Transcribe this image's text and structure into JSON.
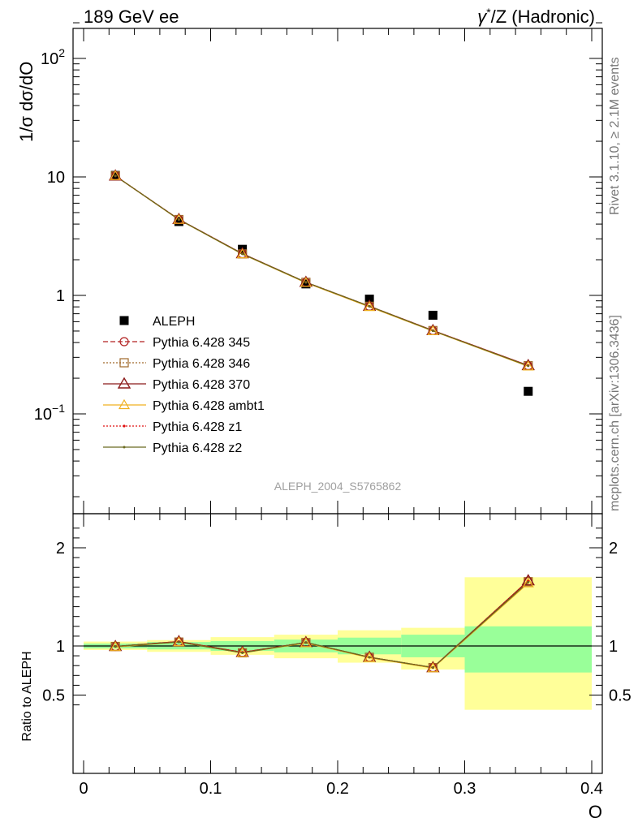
{
  "header": {
    "left": "189 GeV ee",
    "right_sym": "γ",
    "right_sup": "*",
    "right_rest": "/Z (Hadronic)"
  },
  "side_text": {
    "rivet": "Rivet 3.1.10, ≥ 2.1M events",
    "mcplots": "mcplots.cern.ch [arXiv:1306.3436]"
  },
  "analysis_label": "ALEPH_2004_S5765862",
  "colors": {
    "data": "#000000",
    "p345": "#b22222",
    "p346": "#a0692a",
    "p370": "#8b1a1a",
    "ambt1": "#f0b020",
    "z1": "#e01010",
    "z2": "#6b6b20",
    "band_inner": "#99ff99",
    "band_outer": "#ffff99"
  },
  "chart_data": [
    {
      "type": "scatter",
      "panel": "main",
      "ylabel": "1/σ  dσ/dO",
      "yscale": "log",
      "xlim": [
        0,
        0.4
      ],
      "ylim": [
        0.015,
        200
      ],
      "yticks": [
        {
          "value": 0.1,
          "base": "10",
          "exp": "−1"
        },
        {
          "value": 1,
          "base": "1",
          "exp": ""
        },
        {
          "value": 10,
          "base": "10",
          "exp": ""
        },
        {
          "value": 100,
          "base": "10",
          "exp": "2"
        }
      ],
      "x": [
        0.025,
        0.075,
        0.125,
        0.175,
        0.225,
        0.275,
        0.35
      ],
      "x_bins": [
        [
          0,
          0.05
        ],
        [
          0.05,
          0.1
        ],
        [
          0.1,
          0.15
        ],
        [
          0.15,
          0.2
        ],
        [
          0.2,
          0.25
        ],
        [
          0.25,
          0.3
        ],
        [
          0.3,
          0.4
        ]
      ],
      "series": [
        {
          "name": "ALEPH",
          "key": "data",
          "values": [
            10.3,
            4.2,
            2.45,
            1.25,
            0.93,
            0.68,
            0.155
          ]
        },
        {
          "name": "Pythia 6.428 345",
          "key": "p345",
          "values": [
            10.2,
            4.38,
            2.25,
            1.29,
            0.81,
            0.505,
            0.255
          ]
        },
        {
          "name": "Pythia 6.428 346",
          "key": "p346",
          "values": [
            10.2,
            4.37,
            2.24,
            1.29,
            0.81,
            0.505,
            0.255
          ]
        },
        {
          "name": "Pythia 6.428 370",
          "key": "p370",
          "values": [
            10.2,
            4.38,
            2.25,
            1.29,
            0.81,
            0.505,
            0.256
          ]
        },
        {
          "name": "Pythia 6.428 ambt1",
          "key": "ambt1",
          "values": [
            10.2,
            4.36,
            2.23,
            1.28,
            0.8,
            0.5,
            0.252
          ]
        },
        {
          "name": "Pythia 6.428 z1",
          "key": "z1",
          "values": [
            10.2,
            4.38,
            2.25,
            1.29,
            0.81,
            0.505,
            0.256
          ]
        },
        {
          "name": "Pythia 6.428 z2",
          "key": "z2",
          "values": [
            10.2,
            4.37,
            2.24,
            1.29,
            0.81,
            0.503,
            0.254
          ]
        }
      ]
    },
    {
      "type": "line",
      "panel": "ratio",
      "ylabel": "Ratio to ALEPH",
      "xlabel": "O",
      "xlim": [
        0,
        0.4
      ],
      "ylim": [
        0.35,
        2.3
      ],
      "xticks": [
        {
          "value": 0,
          "label": "0"
        },
        {
          "value": 0.1,
          "label": "0.1"
        },
        {
          "value": 0.2,
          "label": "0.2"
        },
        {
          "value": 0.3,
          "label": "0.3"
        },
        {
          "value": 0.4,
          "label": "0.4"
        }
      ],
      "yticks": [
        {
          "value": 0.5,
          "label": "0.5"
        },
        {
          "value": 1,
          "label": "1"
        },
        {
          "value": 2,
          "label": "2"
        }
      ],
      "x": [
        0.025,
        0.075,
        0.125,
        0.175,
        0.225,
        0.275,
        0.35
      ],
      "bands": {
        "x_bins": [
          [
            0,
            0.05
          ],
          [
            0.05,
            0.1
          ],
          [
            0.1,
            0.15
          ],
          [
            0.15,
            0.2
          ],
          [
            0.2,
            0.25
          ],
          [
            0.25,
            0.3
          ],
          [
            0.3,
            0.4
          ]
        ],
        "inner": [
          [
            0.975,
            1.025
          ],
          [
            0.965,
            1.04
          ],
          [
            0.95,
            1.05
          ],
          [
            0.935,
            1.065
          ],
          [
            0.915,
            1.085
          ],
          [
            0.885,
            1.115
          ],
          [
            0.73,
            1.2
          ]
        ],
        "outer": [
          [
            0.96,
            1.045
          ],
          [
            0.94,
            1.06
          ],
          [
            0.91,
            1.09
          ],
          [
            0.875,
            1.115
          ],
          [
            0.83,
            1.16
          ],
          [
            0.76,
            1.185
          ],
          [
            0.35,
            1.7
          ]
        ]
      },
      "series": [
        {
          "name": "Pythia 6.428 345",
          "key": "p345",
          "values": [
            0.995,
            1.045,
            0.935,
            1.035,
            0.885,
            0.78,
            1.66
          ]
        },
        {
          "name": "Pythia 6.428 346",
          "key": "p346",
          "values": [
            0.995,
            1.04,
            0.93,
            1.035,
            0.885,
            0.78,
            1.655
          ]
        },
        {
          "name": "Pythia 6.428 370",
          "key": "p370",
          "values": [
            0.995,
            1.045,
            0.935,
            1.035,
            0.885,
            0.78,
            1.665
          ]
        },
        {
          "name": "Pythia 6.428 ambt1",
          "key": "ambt1",
          "values": [
            0.99,
            1.04,
            0.93,
            1.03,
            0.88,
            0.775,
            1.64
          ]
        },
        {
          "name": "Pythia 6.428 z1",
          "key": "z1",
          "values": [
            0.995,
            1.045,
            0.935,
            1.035,
            0.885,
            0.78,
            1.66
          ]
        },
        {
          "name": "Pythia 6.428 z2",
          "key": "z2",
          "values": [
            0.995,
            1.04,
            0.93,
            1.035,
            0.885,
            0.78,
            1.65
          ]
        }
      ]
    }
  ]
}
